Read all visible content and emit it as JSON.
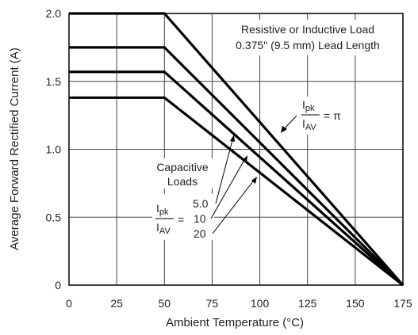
{
  "chart_data": {
    "type": "line",
    "xlabel": "Ambient Temperature (°C)",
    "ylabel": "Average Forward Rectified Current (A)",
    "xlim": [
      0,
      175
    ],
    "ylim": [
      0,
      2.0
    ],
    "x_ticks": [
      "0",
      "25",
      "50",
      "75",
      "100",
      "125",
      "150",
      "175"
    ],
    "y_ticks": [
      "0",
      "0.5",
      "1.0",
      "1.5",
      "2.0"
    ],
    "grid": true,
    "series": [
      {
        "x": [
          0,
          50,
          175
        ],
        "y": [
          2.0,
          2.0,
          0
        ]
      },
      {
        "x": [
          0,
          50,
          175
        ],
        "y": [
          1.75,
          1.75,
          0
        ]
      },
      {
        "x": [
          0,
          50,
          175
        ],
        "y": [
          1.57,
          1.57,
          0
        ]
      },
      {
        "x": [
          0,
          50,
          175
        ],
        "y": [
          1.38,
          1.38,
          0
        ]
      }
    ],
    "annotations": {
      "load_line1": "Resistive or Inductive Load",
      "load_line2": "0.375\" (9.5 mm) Lead Length",
      "ratio_num": "I",
      "ratio_num_sub": "pk",
      "ratio_den": "I",
      "ratio_den_sub": "AV",
      "ratio_pi": "= π",
      "capacitive_line1": "Capacitive",
      "capacitive_line2": "Loads",
      "ratio_eq": "=",
      "cap_values": [
        "5.0",
        "10",
        "20"
      ]
    }
  }
}
